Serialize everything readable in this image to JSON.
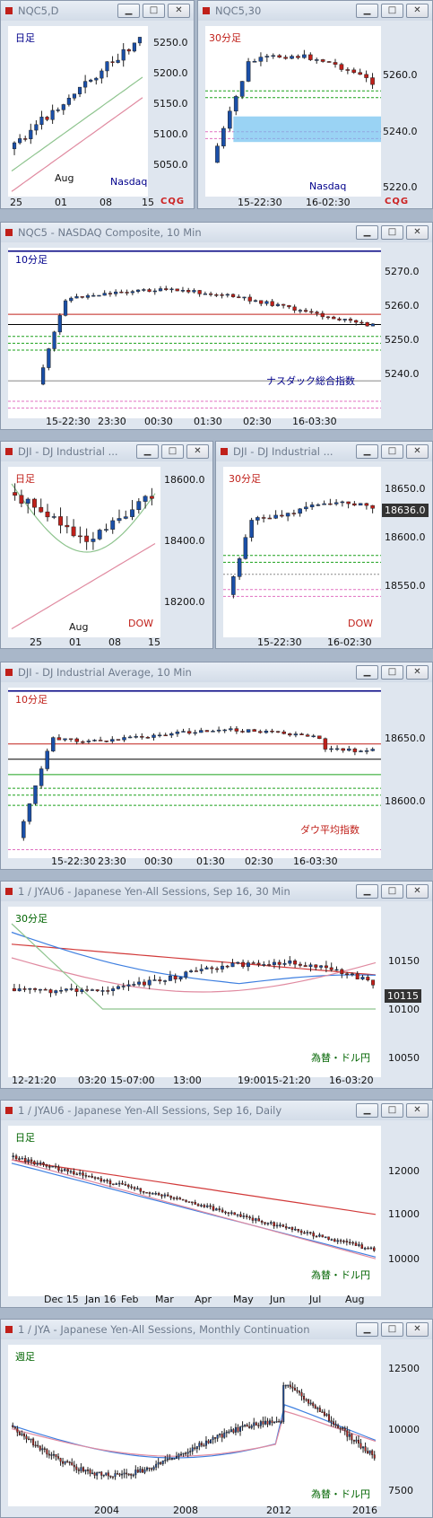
{
  "colors": {
    "up": "#1a4fa8",
    "down": "#c0201a",
    "ma_red": "#d23a3a",
    "ma_blue": "#3e7fe0",
    "ma_pink": "#e08aa0",
    "ma_green": "#8ec48e",
    "hi": "#000080"
  },
  "windows": [
    {
      "title": "NQC5,D",
      "label": "日足",
      "label_color": "#00008b",
      "sublabel": "Nasdaq",
      "sublabel_color": "#00008b",
      "y_labels": [
        "5250.0",
        "5200.0",
        "5150.0",
        "5100.0",
        "5050.0"
      ],
      "x_labels": [
        "25",
        "01",
        "08",
        "15"
      ],
      "month_label": "Aug",
      "logo": "CQG"
    },
    {
      "title": "NQC5,30",
      "label": "30分足",
      "label_color": "#c0201a",
      "sublabel": "Nasdaq",
      "sublabel_color": "#00008b",
      "y_labels": [
        "5260.0",
        "5240.0",
        "5220.0"
      ],
      "x_labels": [
        "15-22:30",
        "16-02:30"
      ],
      "logo": "CQG"
    },
    {
      "title": "NQC5 - NASDAQ Composite, 10 Min",
      "label": "10分足",
      "label_color": "#00008b",
      "sublabel": "ナスダック総合指数",
      "sublabel_color": "#00008b",
      "y_labels": [
        "5270.0",
        "5260.0",
        "5250.0",
        "5240.0"
      ],
      "x_labels": [
        "15-22:30",
        "23:30",
        "00:30",
        "01:30",
        "02:30",
        "16-03:30"
      ]
    },
    {
      "title": "DJI - DJ Industrial ...",
      "label": "日足",
      "label_color": "#c0201a",
      "sublabel": "DOW",
      "sublabel_color": "#c0201a",
      "y_labels": [
        "18600.0",
        "18400.0",
        "18200.0"
      ],
      "x_labels": [
        "25",
        "01",
        "08",
        "15"
      ],
      "month_label": "Aug"
    },
    {
      "title": "DJI - DJ Industrial ...",
      "label": "30分足",
      "label_color": "#c0201a",
      "sublabel": "DOW",
      "sublabel_color": "#c0201a",
      "y_labels": [
        "18650.0",
        "18600.0",
        "18550.0"
      ],
      "x_labels": [
        "15-22:30",
        "16-02:30"
      ],
      "price_box": "18636.0"
    },
    {
      "title": "DJI - DJ Industrial Average, 10 Min",
      "label": "10分足",
      "label_color": "#c0201a",
      "sublabel": "ダウ平均指数",
      "sublabel_color": "#c0201a",
      "y_labels": [
        "18650.0",
        "18600.0"
      ],
      "x_labels": [
        "15-22:30",
        "23:30",
        "00:30",
        "01:30",
        "02:30",
        "16-03:30"
      ]
    },
    {
      "title": "1 / JYAU6 - Japanese Yen-All Sessions, Sep 16, 30 Min",
      "label": "30分足",
      "label_color": "#006400",
      "sublabel": "為替・ドル円",
      "sublabel_color": "#006400",
      "y_labels": [
        "10150",
        "10100",
        "10050"
      ],
      "price_box": "10115",
      "x_labels": [
        "12-21:20",
        "03:20",
        "15-07:00",
        "13:00",
        "19:00",
        "15-21:20",
        "16-03:20"
      ]
    },
    {
      "title": "1 / JYAU6 - Japanese Yen-All Sessions, Sep 16, Daily",
      "label": "日足",
      "label_color": "#006400",
      "sublabel": "為替・ドル円",
      "sublabel_color": "#006400",
      "y_labels": [
        "12000",
        "11000",
        "10000"
      ],
      "x_labels": [
        "Dec 15",
        "Jan 16",
        "Feb",
        "Mar",
        "Apr",
        "May",
        "Jun",
        "Jul",
        "Aug"
      ]
    },
    {
      "title": "1 / JYA - Japanese Yen-All Sessions, Monthly Continuation",
      "label": "週足",
      "label_color": "#006400",
      "sublabel": "為替・ドル円",
      "sublabel_color": "#006400",
      "y_labels": [
        "12500",
        "10000",
        "7500"
      ],
      "x_labels": [
        "2004",
        "2008",
        "2012",
        "2016"
      ]
    }
  ],
  "buttons": {
    "minimize": "▁",
    "maximize": "□",
    "close": "✕"
  }
}
